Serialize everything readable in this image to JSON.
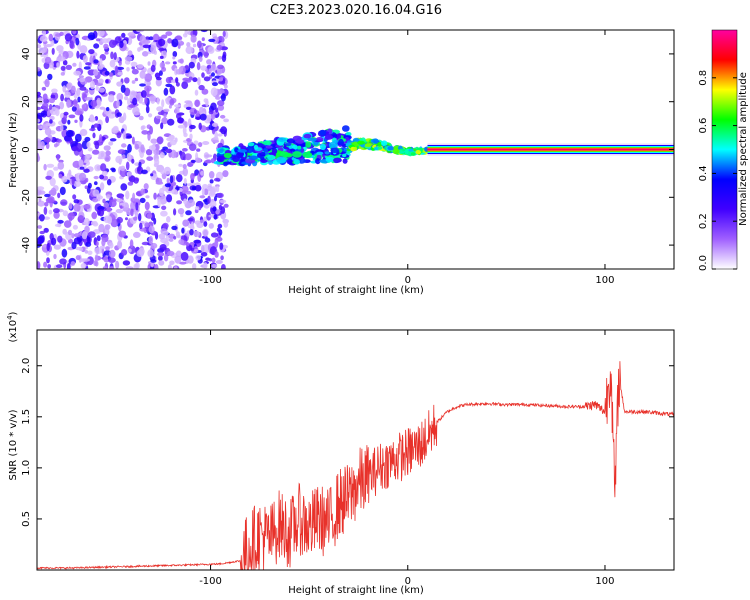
{
  "title": "C2E3.2023.020.16.04.G16",
  "chart_data": [
    {
      "type": "heatmap",
      "title": "C2E3.2023.020.16.04.G16",
      "xlabel": "Height of straight line (km)",
      "ylabel": "Frequency (Hz)",
      "xlim": [
        -188,
        135
      ],
      "ylim": [
        -50,
        50
      ],
      "x_ticks": [
        -100,
        0,
        100
      ],
      "y_ticks": [
        -40,
        -20,
        0,
        20,
        40
      ],
      "colorbar": {
        "label": "Normalized spectral amplitude",
        "range": [
          0.0,
          1.0
        ],
        "ticks": [
          "0.0",
          "0.2",
          "0.4",
          "0.6",
          "0.8"
        ],
        "tick_values": [
          0.0,
          0.2,
          0.4,
          0.6,
          0.8
        ],
        "colors": [
          "#ffffff",
          "#a060ff",
          "#4000ff",
          "#0000ff",
          "#00ffff",
          "#00ff00",
          "#ffff00",
          "#ff0000",
          "#ff00a0"
        ]
      },
      "regions": [
        {
          "x_range": [
            -188,
            -96
          ],
          "freq_range": [
            -50,
            50
          ],
          "amplitude": 0.15,
          "pattern": "scattered noise"
        },
        {
          "x_range": [
            -96,
            -30
          ],
          "freq_range": [
            -10,
            8
          ],
          "amplitude": 0.35,
          "pattern": "broadening band rising to the right"
        },
        {
          "x_range": [
            -30,
            10
          ],
          "freq_range": [
            -5,
            6
          ],
          "amplitude": 0.55,
          "pattern": "narrowing band"
        },
        {
          "x_range": [
            10,
            135
          ],
          "freq_range": [
            -1,
            1
          ],
          "amplitude": 0.95,
          "pattern": "narrow carrier line at 0 Hz"
        }
      ]
    },
    {
      "type": "line",
      "xlabel": "Height of straight line (km)",
      "ylabel": "SNR (10 * v/v)",
      "y_multiplier": "(x10^4)",
      "y_multiplier_base": "(x10",
      "y_multiplier_exp": "4",
      "y_multiplier_close": ")",
      "xlim": [
        -188,
        135
      ],
      "ylim": [
        0,
        2.35
      ],
      "x_ticks": [
        -100,
        0,
        100
      ],
      "y_ticks": [
        "0.5",
        "1.0",
        "1.5",
        "2.0"
      ],
      "y_tick_values": [
        0.5,
        1.0,
        1.5,
        2.0
      ],
      "series": [
        {
          "color": "#e8312a",
          "x": [
            -188,
            -170,
            -150,
            -130,
            -110,
            -95,
            -85,
            -80,
            -75,
            -70,
            -65,
            -60,
            -55,
            -50,
            -45,
            -40,
            -35,
            -30,
            -25,
            -20,
            -15,
            -10,
            -5,
            0,
            5,
            10,
            15,
            20,
            25,
            30,
            40,
            50,
            60,
            70,
            80,
            90,
            95,
            100,
            103,
            105,
            107,
            110,
            120,
            135
          ],
          "y": [
            0.02,
            0.02,
            0.03,
            0.04,
            0.05,
            0.06,
            0.09,
            0.25,
            0.35,
            0.3,
            0.45,
            0.35,
            0.5,
            0.42,
            0.5,
            0.45,
            0.65,
            0.7,
            0.85,
            0.9,
            1.0,
            1.05,
            1.1,
            1.15,
            1.2,
            1.3,
            1.45,
            1.55,
            1.6,
            1.62,
            1.63,
            1.62,
            1.62,
            1.61,
            1.6,
            1.6,
            1.62,
            1.55,
            2.0,
            0.7,
            1.9,
            1.55,
            1.55,
            1.52
          ]
        }
      ]
    }
  ]
}
